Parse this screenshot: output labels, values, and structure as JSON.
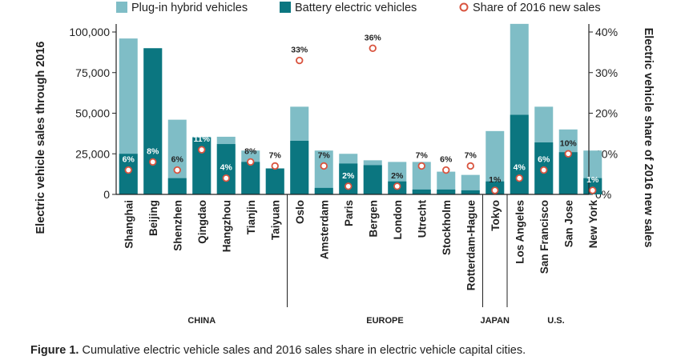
{
  "chart_data": {
    "type": "bar",
    "stacked": true,
    "legend": {
      "position": "top",
      "phev": "Plug-in hybrid vehicles",
      "bev": "Battery electric vehicles",
      "share": "Share of 2016 new sales"
    },
    "colors": {
      "phev": "#7fbdc6",
      "bev": "#0b7680",
      "share": "#d9543f",
      "axis": "#222222"
    },
    "ylabel_left": "Electric vehicle sales through 2016",
    "ylabel_right": "Electric vehicle share of 2016 new sales",
    "ylim_left": [
      0,
      100000
    ],
    "ylim_right": [
      0,
      40
    ],
    "yticks_left": [
      "0",
      "25,000",
      "50,000",
      "75,000",
      "100,000"
    ],
    "yticks_right": [
      "0%",
      "10%",
      "20%",
      "30%",
      "40%"
    ],
    "categories": [
      "Shanghai",
      "Beijing",
      "Shenzhen",
      "Qingdao",
      "Hangzhou",
      "Tianjin",
      "Taiyuan",
      "Oslo",
      "Amsterdam",
      "Paris",
      "Bergen",
      "London",
      "Utrecht",
      "Stockholm",
      "Rotterdam-Hague",
      "Tokyo",
      "Los Angeles",
      "San Francisco",
      "San Jose",
      "New York"
    ],
    "series": [
      {
        "name": "Battery electric vehicles",
        "values": [
          25000,
          90000,
          10000,
          35000,
          31000,
          20000,
          16000,
          33000,
          4000,
          19000,
          18000,
          8000,
          3000,
          3000,
          2500,
          8000,
          49000,
          32000,
          26000,
          10000
        ]
      },
      {
        "name": "Plug-in hybrid vehicles (total)",
        "values": [
          96000,
          90000,
          46000,
          35500,
          35500,
          27000,
          16000,
          54000,
          27000,
          25000,
          21000,
          20000,
          20000,
          14000,
          12000,
          39000,
          105000,
          54000,
          40000,
          27000
        ]
      }
    ],
    "share": [
      6,
      8,
      6,
      11,
      4,
      8,
      7,
      33,
      7,
      2,
      36,
      2,
      7,
      6,
      7,
      1,
      4,
      6,
      10,
      1
    ],
    "share_labels": [
      "6%",
      "8%",
      "6%",
      "11%",
      "4%",
      "8%",
      "7%",
      "33%",
      "7%",
      "2%",
      "36%",
      "2%",
      "7%",
      "6%",
      "7%",
      "1%",
      "4%",
      "6%",
      "10%",
      "1%"
    ],
    "regions": [
      {
        "name": "CHINA",
        "start": 0,
        "end": 6
      },
      {
        "name": "EUROPE",
        "start": 7,
        "end": 14
      },
      {
        "name": "JAPAN",
        "start": 15,
        "end": 15
      },
      {
        "name": "U.S.",
        "start": 16,
        "end": 19
      }
    ]
  },
  "caption": {
    "label": "Figure 1.",
    "text": " Cumulative electric vehicle sales and 2016 sales share in electric vehicle capital cities."
  }
}
